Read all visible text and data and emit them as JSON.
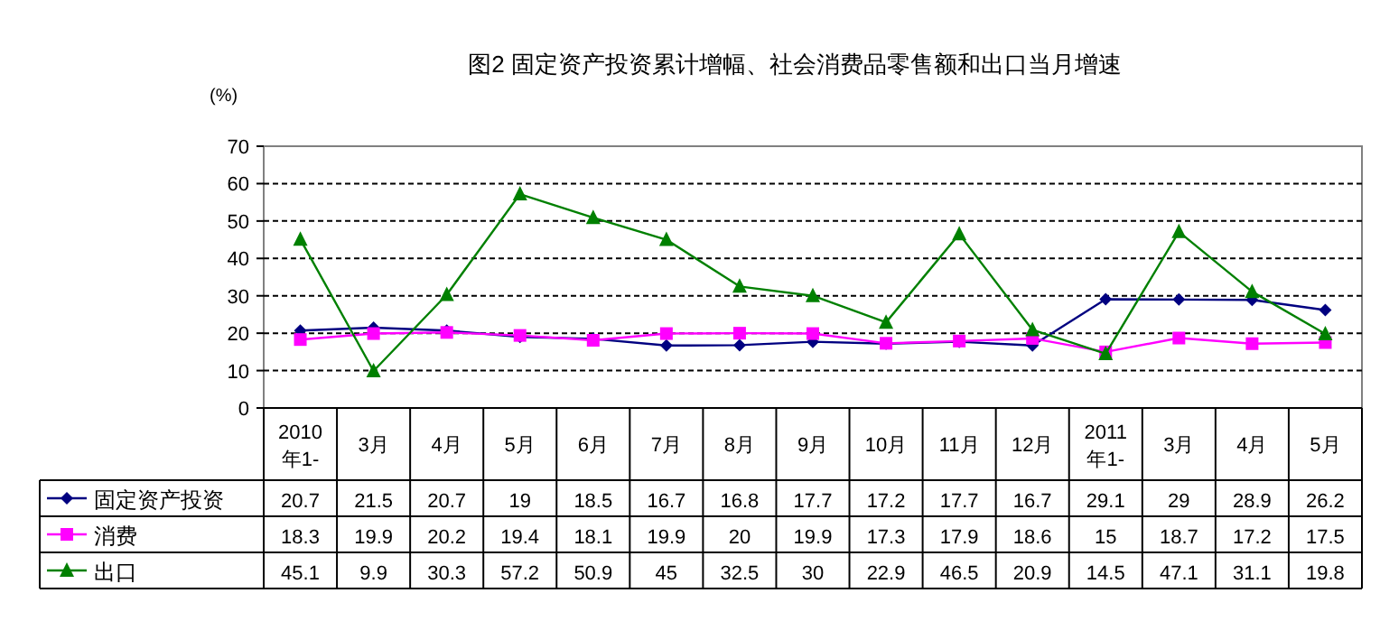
{
  "chart_data": {
    "type": "line",
    "title": "图2 固定资产投资累计增幅、社会消费品零售额和出口当月增速",
    "ylabel": "(%)",
    "categories": [
      "2010\n年1-",
      "3月",
      "4月",
      "5月",
      "6月",
      "7月",
      "8月",
      "9月",
      "10月",
      "11月",
      "12月",
      "2011\n年1-",
      "3月",
      "4月",
      "5月"
    ],
    "series": [
      {
        "name": "固定资产投资",
        "color": "#000080",
        "marker": "diamond",
        "values": [
          20.7,
          21.5,
          20.7,
          19,
          18.5,
          16.7,
          16.8,
          17.7,
          17.2,
          17.7,
          16.7,
          29.1,
          29,
          28.9,
          26.2
        ]
      },
      {
        "name": "消费",
        "color": "#ff00ff",
        "marker": "square",
        "values": [
          18.3,
          19.9,
          20.2,
          19.4,
          18.1,
          19.9,
          20,
          19.9,
          17.3,
          17.9,
          18.6,
          15,
          18.7,
          17.2,
          17.5
        ]
      },
      {
        "name": "出口",
        "color": "#008000",
        "marker": "triangle",
        "values": [
          45.1,
          9.9,
          30.3,
          57.2,
          50.9,
          45,
          32.5,
          30,
          22.9,
          46.5,
          20.9,
          14.5,
          47.1,
          31.1,
          19.8
        ]
      }
    ],
    "ylim": [
      0,
      70
    ],
    "yticks": [
      0,
      10,
      20,
      30,
      40,
      50,
      60,
      70
    ],
    "grid": "y",
    "line_style": "solid",
    "data_labels": true,
    "legend": "bottom"
  }
}
